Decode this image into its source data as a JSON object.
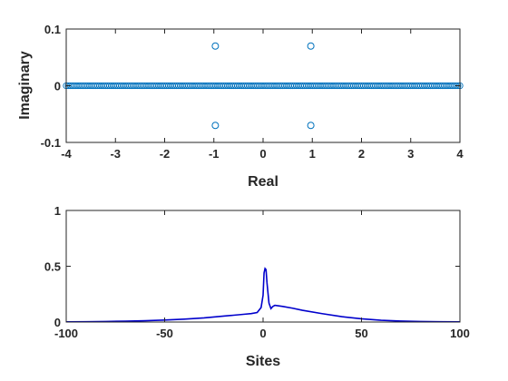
{
  "colors": {
    "marker": "#0072BD",
    "line": "#0000CC",
    "axis": "#262626"
  },
  "chart_data": [
    {
      "type": "scatter",
      "marker": "open-circle",
      "xlabel": "Real",
      "ylabel": "Imaginary",
      "xlim": [
        -4,
        4
      ],
      "ylim": [
        -0.1,
        0.1
      ],
      "xticks": [
        "-4",
        "-3",
        "-2",
        "-1",
        "0",
        "1",
        "2",
        "3",
        "4"
      ],
      "yticks": [
        "0.1",
        "0",
        "-0.1"
      ],
      "real_axis_points": {
        "from": -4,
        "to": 4,
        "count": 201,
        "imag": 0
      },
      "complex_points": [
        {
          "x": -0.97,
          "y": 0.07
        },
        {
          "x": 0.97,
          "y": 0.07
        },
        {
          "x": -0.97,
          "y": -0.07
        },
        {
          "x": 0.97,
          "y": -0.07
        }
      ],
      "grid": false,
      "box": true
    },
    {
      "type": "line",
      "xlabel": "Sites",
      "ylabel": "",
      "xlim": [
        -100,
        100
      ],
      "ylim": [
        0,
        1
      ],
      "xticks": [
        "-100",
        "-50",
        "0",
        "50",
        "100"
      ],
      "yticks": [
        "1",
        "0.5",
        "0"
      ],
      "x": [
        -100,
        -90,
        -80,
        -70,
        -60,
        -50,
        -40,
        -30,
        -25,
        -20,
        -15,
        -10,
        -6,
        -3,
        -1,
        0,
        0.5,
        1,
        1.5,
        2,
        3,
        4,
        5,
        6,
        8,
        10,
        15,
        20,
        30,
        40,
        50,
        60,
        70,
        80,
        90,
        100
      ],
      "y": [
        0.002,
        0.003,
        0.005,
        0.008,
        0.012,
        0.018,
        0.026,
        0.037,
        0.045,
        0.053,
        0.061,
        0.069,
        0.076,
        0.085,
        0.13,
        0.24,
        0.44,
        0.48,
        0.47,
        0.35,
        0.17,
        0.12,
        0.14,
        0.15,
        0.145,
        0.14,
        0.124,
        0.105,
        0.075,
        0.048,
        0.029,
        0.016,
        0.009,
        0.005,
        0.003,
        0.002
      ],
      "grid": false,
      "box": true
    }
  ]
}
